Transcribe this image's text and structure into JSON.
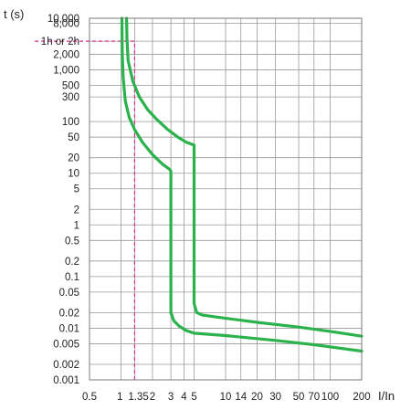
{
  "chart_data": {
    "type": "line",
    "title": "",
    "ylabel": "t (s)",
    "xlabel": "I/In",
    "x_scale": "log",
    "y_scale": "log",
    "xlim": [
      0.5,
      200
    ],
    "ylim": [
      0.001,
      10000
    ],
    "grid": true,
    "x_ticks": [
      {
        "value": 0.5,
        "label": "0.5"
      },
      {
        "value": 1,
        "label": "1"
      },
      {
        "value": 1.35,
        "label": "1.35"
      },
      {
        "value": 2,
        "label": "2"
      },
      {
        "value": 3,
        "label": "3"
      },
      {
        "value": 4,
        "label": "4"
      },
      {
        "value": 5,
        "label": "5"
      },
      {
        "value": 10,
        "label": "10"
      },
      {
        "value": 14,
        "label": "14"
      },
      {
        "value": 20,
        "label": "20"
      },
      {
        "value": 30,
        "label": "30"
      },
      {
        "value": 50,
        "label": "50"
      },
      {
        "value": 70,
        "label": "70"
      },
      {
        "value": 100,
        "label": "100"
      },
      {
        "value": 200,
        "label": "200"
      }
    ],
    "y_ticks": [
      {
        "value": 10000,
        "label": "10,000"
      },
      {
        "value": 8000,
        "label": "8,000"
      },
      {
        "value": 3600,
        "label": "1h or 2h"
      },
      {
        "value": 2000,
        "label": "2,000"
      },
      {
        "value": 1000,
        "label": "1,000"
      },
      {
        "value": 500,
        "label": "500"
      },
      {
        "value": 300,
        "label": "300"
      },
      {
        "value": 100,
        "label": "100"
      },
      {
        "value": 50,
        "label": "50"
      },
      {
        "value": 20,
        "label": "20"
      },
      {
        "value": 10,
        "label": "10"
      },
      {
        "value": 5,
        "label": "5"
      },
      {
        "value": 2,
        "label": "2"
      },
      {
        "value": 1,
        "label": "1"
      },
      {
        "value": 0.5,
        "label": "0.5"
      },
      {
        "value": 0.2,
        "label": "0.2"
      },
      {
        "value": 0.1,
        "label": "0.1"
      },
      {
        "value": 0.05,
        "label": "0.05"
      },
      {
        "value": 0.02,
        "label": "0.02"
      },
      {
        "value": 0.01,
        "label": "0.01"
      },
      {
        "value": 0.005,
        "label": "0.005"
      },
      {
        "value": 0.002,
        "label": "0.002"
      },
      {
        "value": 0.001,
        "label": "0.001"
      }
    ],
    "series": [
      {
        "color": "#2bb24c",
        "points": [
          [
            1.02,
            10000
          ],
          [
            1.03,
            2000
          ],
          [
            1.05,
            700
          ],
          [
            1.1,
            250
          ],
          [
            1.2,
            120
          ],
          [
            1.35,
            70
          ],
          [
            1.6,
            40
          ],
          [
            2.0,
            23
          ],
          [
            2.5,
            15
          ],
          [
            2.9,
            12
          ],
          [
            3.0,
            11
          ],
          [
            3.0,
            0.02
          ],
          [
            3.2,
            0.014
          ],
          [
            3.6,
            0.011
          ],
          [
            4.2,
            0.009
          ],
          [
            5.0,
            0.008
          ],
          [
            10,
            0.0072
          ],
          [
            30,
            0.0058
          ],
          [
            70,
            0.0048
          ],
          [
            200,
            0.0036
          ]
        ]
      },
      {
        "color": "#2bb24c",
        "points": [
          [
            1.13,
            10000
          ],
          [
            1.14,
            4000
          ],
          [
            1.17,
            1500
          ],
          [
            1.3,
            600
          ],
          [
            1.5,
            300
          ],
          [
            1.8,
            170
          ],
          [
            2.2,
            110
          ],
          [
            2.8,
            70
          ],
          [
            3.5,
            50
          ],
          [
            4.2,
            40
          ],
          [
            5.0,
            35
          ],
          [
            5.0,
            0.03
          ],
          [
            5.3,
            0.02
          ],
          [
            6.0,
            0.018
          ],
          [
            8.0,
            0.0165
          ],
          [
            20,
            0.013
          ],
          [
            50,
            0.0105
          ],
          [
            100,
            0.0087
          ],
          [
            200,
            0.007
          ]
        ]
      }
    ],
    "reference_lines": [
      {
        "color": "#d62f8a",
        "y": 3600,
        "x_from": 0.5,
        "x_to": 1.35
      },
      {
        "color": "#d62f8a",
        "x": 1.35,
        "y_from": 0.001,
        "y_to": 3600
      }
    ]
  }
}
